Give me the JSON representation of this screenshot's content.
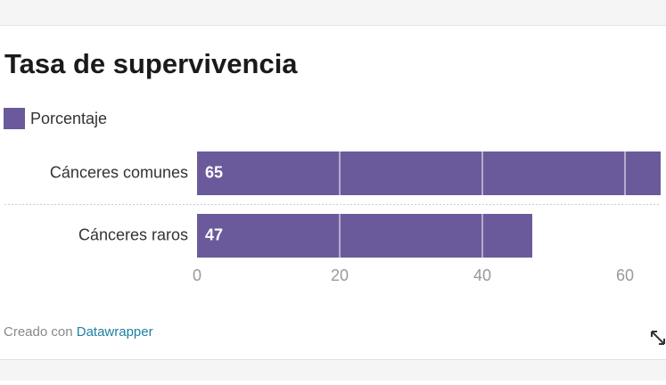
{
  "chart_data": {
    "type": "hbar",
    "title": "Tasa de supervivencia",
    "categories": [
      "Cánceres comunes",
      "Cánceres raros"
    ],
    "series": [
      {
        "name": "Porcentaje",
        "color": "#6b5a9b",
        "values": [
          65,
          47
        ]
      }
    ],
    "xlim": [
      0,
      65
    ],
    "xticks": [
      0,
      20,
      40,
      60
    ],
    "grid": true,
    "credit": "Creado con",
    "credit_link": "Datawrapper"
  }
}
